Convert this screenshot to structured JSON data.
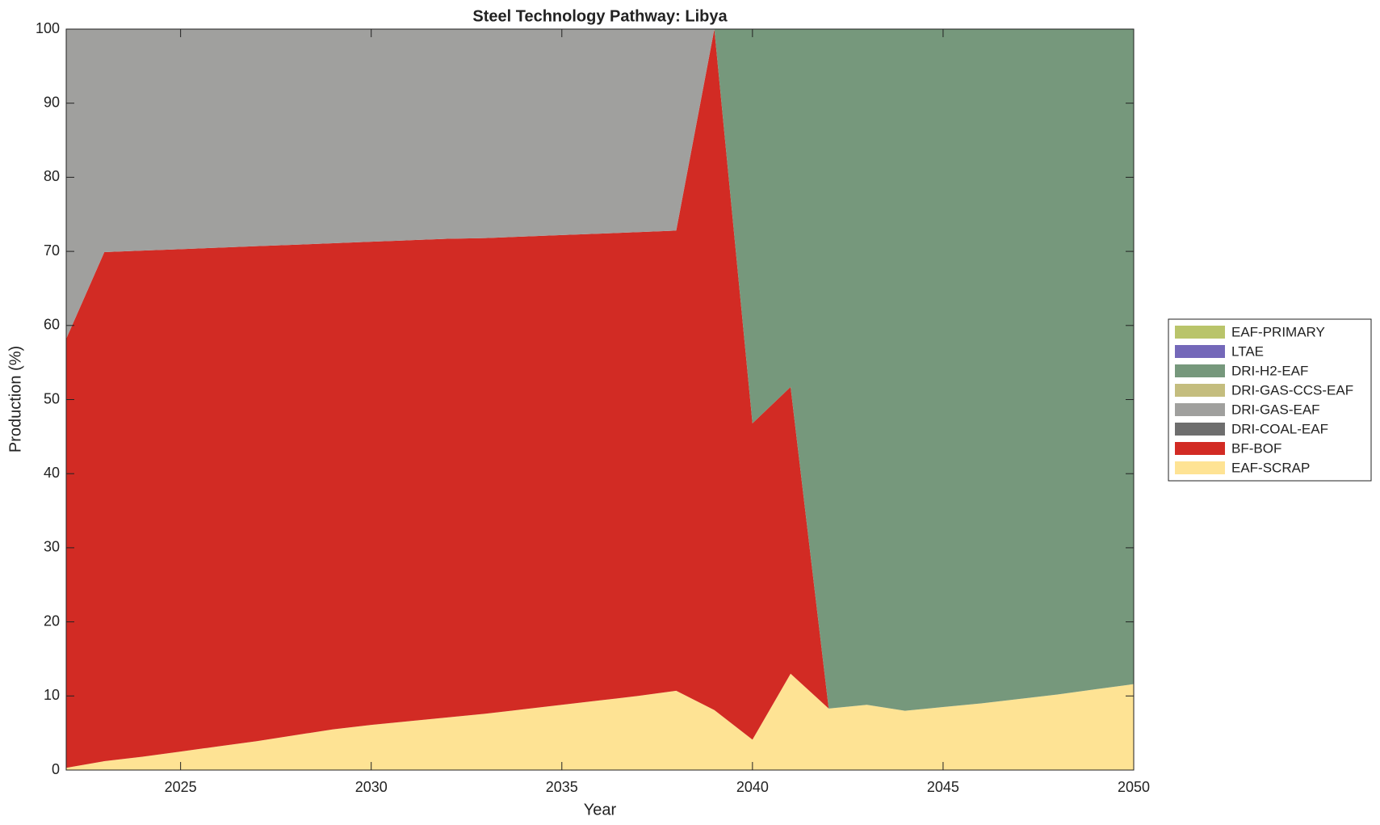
{
  "chart_data": {
    "type": "stacked_area",
    "title": "Steel Technology Pathway: Libya",
    "x_label": "Year",
    "y_label": "Production (%)",
    "x": [
      2022,
      2023,
      2024,
      2025,
      2026,
      2027,
      2028,
      2029,
      2030,
      2031,
      2032,
      2033,
      2034,
      2035,
      2036,
      2037,
      2038,
      2039,
      2040,
      2041,
      2042,
      2043,
      2044,
      2045,
      2046,
      2047,
      2048,
      2049,
      2050
    ],
    "series": [
      {
        "name": "EAF-SCRAP",
        "color": "#fee394",
        "values": [
          0.3,
          1.2,
          1.8,
          2.5,
          3.2,
          3.9,
          4.7,
          5.5,
          6.1,
          6.6,
          7.1,
          7.6,
          8.2,
          8.8,
          9.4,
          10.0,
          10.7,
          8.1,
          4.1,
          13.0,
          8.3,
          8.8,
          8.0,
          8.5,
          9.0,
          9.6,
          10.2,
          10.9,
          11.6
        ]
      },
      {
        "name": "BF-BOF",
        "color": "#d22b24",
        "values": [
          57.9,
          68.7,
          68.3,
          67.8,
          67.3,
          66.8,
          66.2,
          65.6,
          65.2,
          64.9,
          64.6,
          64.2,
          63.8,
          63.4,
          63.0,
          62.6,
          62.1,
          91.9,
          42.7,
          38.7,
          0,
          0,
          0,
          0,
          0,
          0,
          0,
          0,
          0
        ]
      },
      {
        "name": "DRI-COAL-EAF",
        "color": "#6e6e6e",
        "values": [
          0,
          0,
          0,
          0,
          0,
          0,
          0,
          0,
          0,
          0,
          0,
          0,
          0,
          0,
          0,
          0,
          0,
          0,
          0,
          0,
          0,
          0,
          0,
          0,
          0,
          0,
          0,
          0,
          0
        ]
      },
      {
        "name": "DRI-GAS-EAF",
        "color": "#a0a09e",
        "values": [
          41.8,
          30.1,
          29.9,
          29.7,
          29.5,
          29.3,
          29.1,
          28.9,
          28.7,
          28.5,
          28.3,
          28.2,
          28.0,
          27.8,
          27.6,
          27.4,
          27.2,
          0,
          0,
          0,
          0,
          0,
          0,
          0,
          0,
          0,
          0,
          0,
          0
        ]
      },
      {
        "name": "DRI-GAS-CCS-EAF",
        "color": "#c4bd7e",
        "values": [
          0,
          0,
          0,
          0,
          0,
          0,
          0,
          0,
          0,
          0,
          0,
          0,
          0,
          0,
          0,
          0,
          0,
          0,
          0,
          0,
          0,
          0,
          0,
          0,
          0,
          0,
          0,
          0,
          0
        ]
      },
      {
        "name": "DRI-H2-EAF",
        "color": "#76987c",
        "values": [
          0,
          0,
          0,
          0,
          0,
          0,
          0,
          0,
          0,
          0,
          0,
          0,
          0,
          0,
          0,
          0,
          0,
          0,
          53.2,
          48.3,
          91.7,
          91.2,
          92.0,
          91.5,
          91.0,
          90.4,
          89.8,
          89.1,
          88.4
        ]
      },
      {
        "name": "LTAE",
        "color": "#7468b9",
        "values": [
          0,
          0,
          0,
          0,
          0,
          0,
          0,
          0,
          0,
          0,
          0,
          0,
          0,
          0,
          0,
          0,
          0,
          0,
          0,
          0,
          0,
          0,
          0,
          0,
          0,
          0,
          0,
          0,
          0
        ]
      },
      {
        "name": "EAF-PRIMARY",
        "color": "#b9c46a",
        "values": [
          0,
          0,
          0,
          0,
          0,
          0,
          0,
          0,
          0,
          0,
          0,
          0,
          0,
          0,
          0,
          0,
          0,
          0,
          0,
          0,
          0,
          0,
          0,
          0,
          0,
          0,
          0,
          0,
          0
        ]
      }
    ],
    "xlim": [
      2022,
      2050
    ],
    "xticks": [
      2025,
      2030,
      2035,
      2040,
      2045,
      2050
    ],
    "ylim": [
      0,
      100
    ],
    "yticks": [
      0,
      10,
      20,
      30,
      40,
      50,
      60,
      70,
      80,
      90,
      100
    ],
    "grid": false,
    "legend": "right"
  }
}
